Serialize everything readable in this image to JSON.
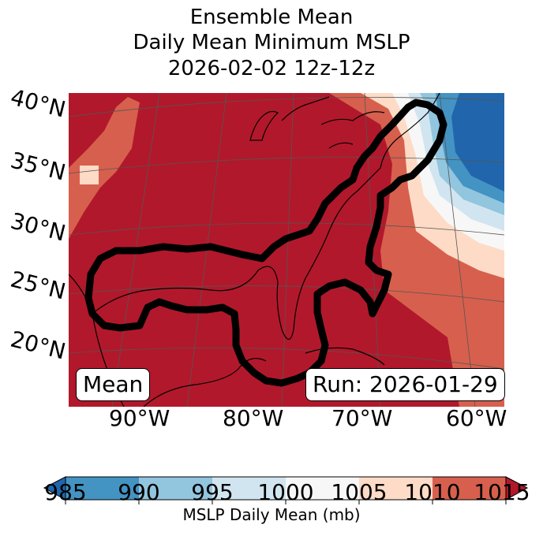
{
  "title": {
    "line1": "Ensemble Mean",
    "line2": "Daily Mean Minimum MSLP",
    "line3": "2026-02-02 12z-12z"
  },
  "map": {
    "lat_labels": [
      "40°N",
      "35°N",
      "30°N",
      "25°N",
      "20°N"
    ],
    "lon_labels": [
      "90°W",
      "80°W",
      "70°W",
      "60°W"
    ],
    "mean_box": "Mean",
    "run_box": "Run: 2026-01-29"
  },
  "colorbar": {
    "label": "MSLP Daily Mean (mb)",
    "ticks": [
      "985",
      "990",
      "995",
      "1000",
      "1005",
      "1010",
      "1015"
    ],
    "colors": [
      "#2166ac",
      "#4393c3",
      "#92c5de",
      "#d1e5f0",
      "#f7f7f7",
      "#fddbc7",
      "#d6604d",
      "#b2182b"
    ]
  }
}
